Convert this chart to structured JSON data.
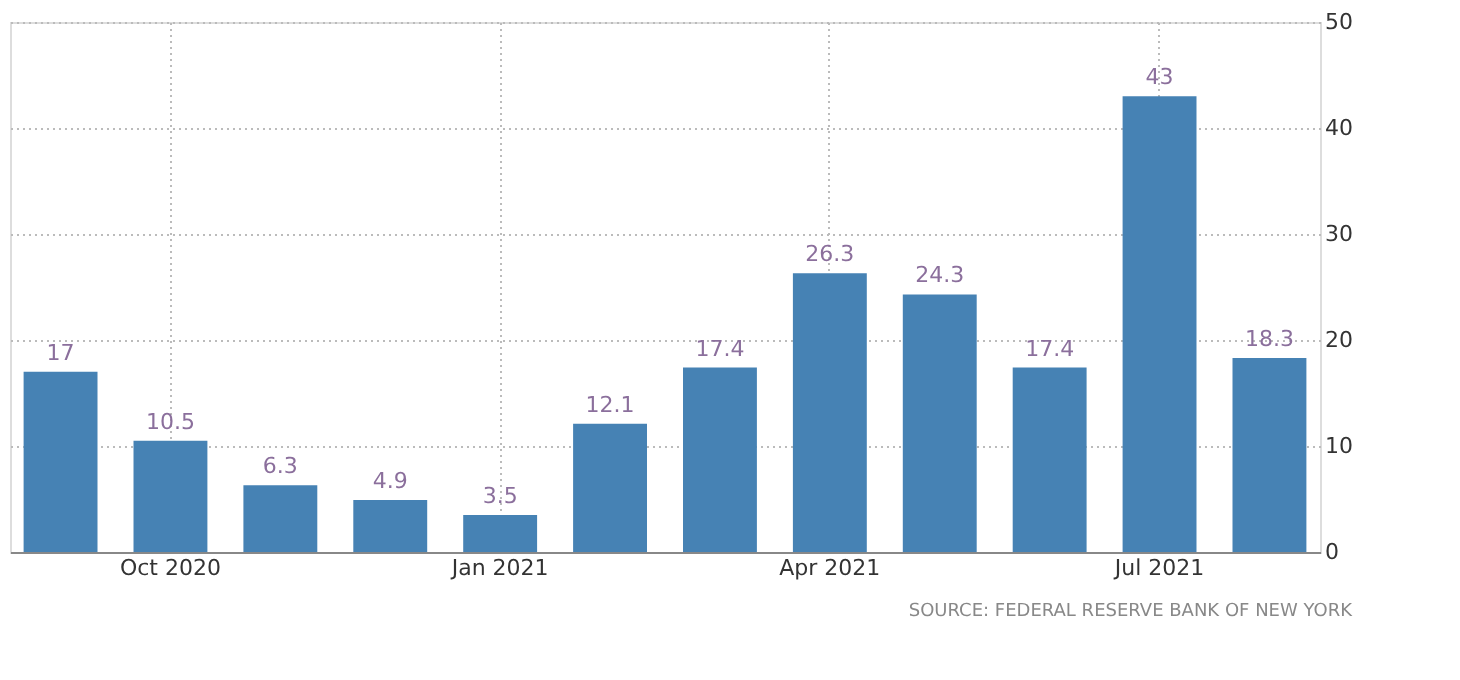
{
  "chart_data": {
    "type": "bar",
    "categories": [
      null,
      "Oct 2020",
      null,
      null,
      "Jan 2021",
      null,
      null,
      "Apr 2021",
      null,
      null,
      "Jul 2021",
      null
    ],
    "values": [
      17,
      10.5,
      6.3,
      4.9,
      3.5,
      12.1,
      17.4,
      26.3,
      24.3,
      17.4,
      43,
      18.3
    ],
    "color": "#4682b4",
    "ylim": [
      0,
      50
    ],
    "yticks": [
      0,
      10,
      20,
      30,
      40,
      50
    ],
    "grid": true,
    "data_labels": true,
    "annotations": [
      "SOURCE: FEDERAL RESERVE BANK OF NEW YORK"
    ]
  }
}
